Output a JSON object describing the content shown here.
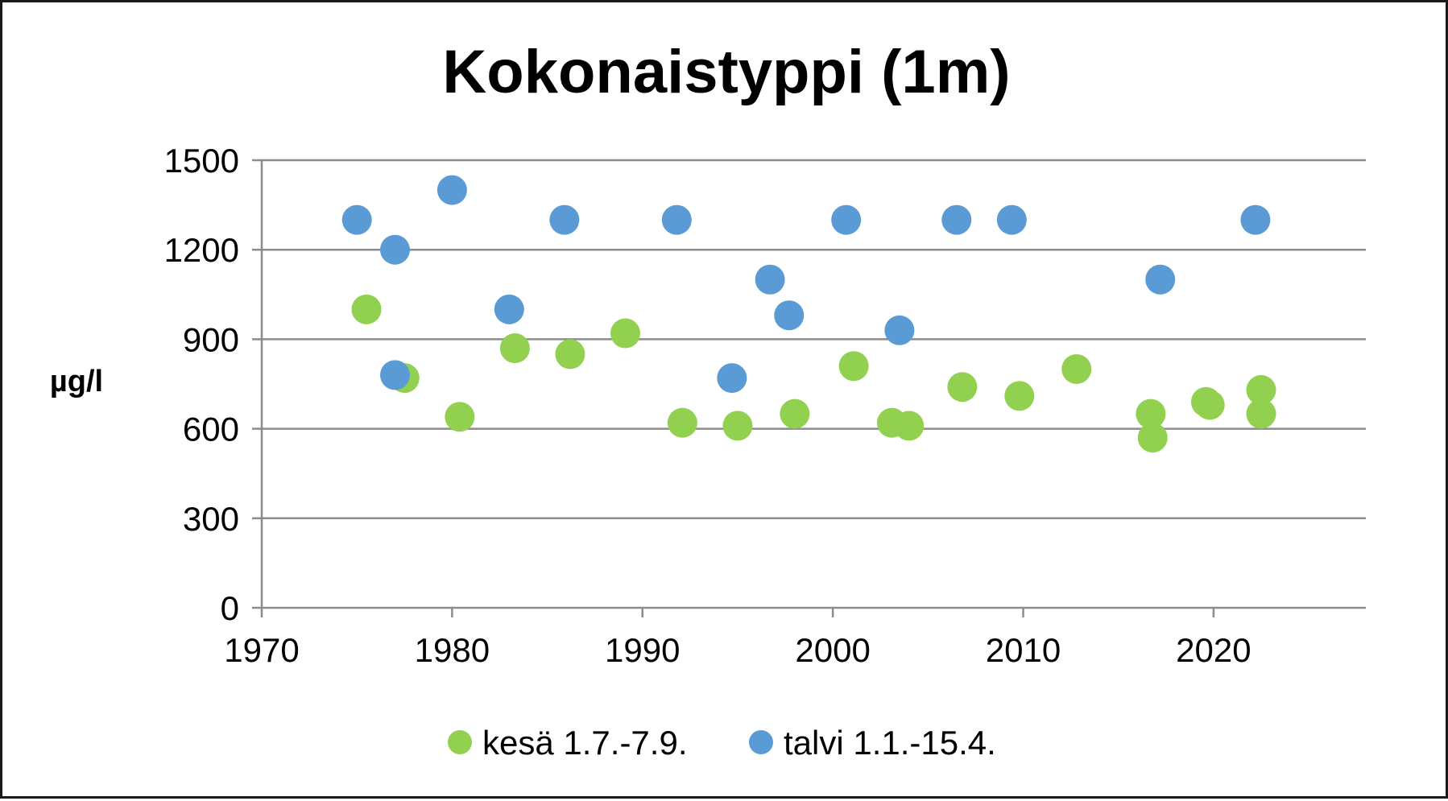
{
  "chart_data": {
    "type": "scatter",
    "title": "Kokonaistyppi (1m)",
    "ylabel": "µg/l",
    "xlabel": "",
    "xlim": [
      1970,
      2028
    ],
    "ylim": [
      0,
      1500
    ],
    "xticks": [
      1970,
      1980,
      1990,
      2000,
      2010,
      2020
    ],
    "yticks": [
      0,
      300,
      600,
      900,
      1200,
      1500
    ],
    "xtick_labels": [
      "1970",
      "1980",
      "1990",
      "2000",
      "2010",
      "2020"
    ],
    "ytick_labels": [
      "0",
      "300",
      "600",
      "900",
      "1200",
      "1500"
    ],
    "grid": "horizontal",
    "legend_position": "bottom",
    "series": [
      {
        "name": "kesä 1.7.-7.9.",
        "color": "#92d050",
        "points": [
          [
            1975.5,
            1000
          ],
          [
            1977.5,
            770
          ],
          [
            1980.4,
            640
          ],
          [
            1983.3,
            870
          ],
          [
            1986.2,
            850
          ],
          [
            1989.1,
            920
          ],
          [
            1992.1,
            620
          ],
          [
            1995.0,
            610
          ],
          [
            1998.0,
            650
          ],
          [
            2001.1,
            810
          ],
          [
            2003.1,
            620
          ],
          [
            2004.0,
            610
          ],
          [
            2006.8,
            740
          ],
          [
            2009.8,
            710
          ],
          [
            2012.8,
            800
          ],
          [
            2016.7,
            650
          ],
          [
            2016.8,
            570
          ],
          [
            2019.6,
            690
          ],
          [
            2019.8,
            680
          ],
          [
            2022.5,
            730
          ],
          [
            2022.5,
            650
          ]
        ]
      },
      {
        "name": "talvi 1.1.-15.4.",
        "color": "#5b9bd5",
        "points": [
          [
            1975.0,
            1300
          ],
          [
            1977.0,
            1200
          ],
          [
            1980.0,
            1400
          ],
          [
            1983.0,
            1000
          ],
          [
            1977.0,
            780
          ],
          [
            1985.9,
            1300
          ],
          [
            1991.8,
            1300
          ],
          [
            1994.7,
            770
          ],
          [
            1996.7,
            1100
          ],
          [
            1997.7,
            980
          ],
          [
            2000.7,
            1300
          ],
          [
            2003.5,
            930
          ],
          [
            2006.5,
            1300
          ],
          [
            2009.4,
            1300
          ],
          [
            2017.2,
            1100
          ],
          [
            2022.2,
            1300
          ]
        ]
      }
    ]
  }
}
